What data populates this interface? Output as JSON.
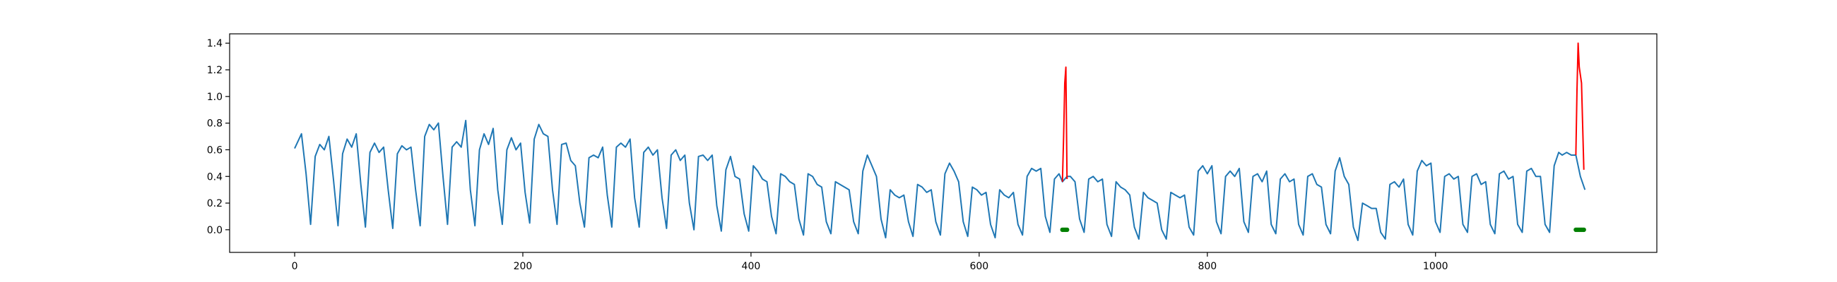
{
  "chart_data": {
    "type": "line",
    "title": "",
    "xlabel": "",
    "ylabel": "",
    "xlim": [
      -57,
      1194
    ],
    "ylim": [
      -0.17,
      1.47
    ],
    "x_ticks": [
      0,
      200,
      400,
      600,
      800,
      1000
    ],
    "y_ticks": [
      0.0,
      0.2,
      0.4,
      0.6,
      0.8,
      1.0,
      1.2,
      1.4
    ],
    "x_tick_labels": [
      "0",
      "200",
      "400",
      "600",
      "800",
      "1000"
    ],
    "y_tick_labels": [
      "0.0",
      "0.2",
      "0.4",
      "0.6",
      "0.8",
      "1.0",
      "1.2",
      "1.4"
    ],
    "grid": false,
    "legend": "none",
    "series": [
      {
        "kind": "line",
        "color": "#1f77b4",
        "points": [
          [
            0,
            0.61
          ],
          [
            6,
            0.72
          ],
          [
            10,
            0.42
          ],
          [
            14,
            0.04
          ],
          [
            18,
            0.55
          ],
          [
            22,
            0.64
          ],
          [
            26,
            0.6
          ],
          [
            30,
            0.7
          ],
          [
            34,
            0.38
          ],
          [
            38,
            0.03
          ],
          [
            42,
            0.57
          ],
          [
            46,
            0.68
          ],
          [
            50,
            0.62
          ],
          [
            54,
            0.72
          ],
          [
            58,
            0.34
          ],
          [
            62,
            0.02
          ],
          [
            66,
            0.58
          ],
          [
            70,
            0.65
          ],
          [
            74,
            0.58
          ],
          [
            78,
            0.62
          ],
          [
            82,
            0.3
          ],
          [
            86,
            0.01
          ],
          [
            90,
            0.57
          ],
          [
            94,
            0.63
          ],
          [
            98,
            0.6
          ],
          [
            102,
            0.62
          ],
          [
            106,
            0.3
          ],
          [
            110,
            0.03
          ],
          [
            114,
            0.7
          ],
          [
            118,
            0.79
          ],
          [
            122,
            0.75
          ],
          [
            126,
            0.8
          ],
          [
            130,
            0.4
          ],
          [
            134,
            0.04
          ],
          [
            138,
            0.62
          ],
          [
            142,
            0.66
          ],
          [
            146,
            0.62
          ],
          [
            150,
            0.82
          ],
          [
            154,
            0.3
          ],
          [
            158,
            0.03
          ],
          [
            162,
            0.6
          ],
          [
            166,
            0.72
          ],
          [
            170,
            0.64
          ],
          [
            174,
            0.76
          ],
          [
            178,
            0.3
          ],
          [
            182,
            0.04
          ],
          [
            186,
            0.6
          ],
          [
            190,
            0.69
          ],
          [
            194,
            0.6
          ],
          [
            198,
            0.65
          ],
          [
            202,
            0.28
          ],
          [
            206,
            0.05
          ],
          [
            210,
            0.68
          ],
          [
            214,
            0.79
          ],
          [
            218,
            0.72
          ],
          [
            222,
            0.7
          ],
          [
            226,
            0.3
          ],
          [
            230,
            0.04
          ],
          [
            234,
            0.64
          ],
          [
            238,
            0.65
          ],
          [
            242,
            0.52
          ],
          [
            246,
            0.48
          ],
          [
            250,
            0.2
          ],
          [
            254,
            0.02
          ],
          [
            258,
            0.54
          ],
          [
            262,
            0.56
          ],
          [
            266,
            0.54
          ],
          [
            270,
            0.62
          ],
          [
            274,
            0.26
          ],
          [
            278,
            0.02
          ],
          [
            282,
            0.62
          ],
          [
            286,
            0.65
          ],
          [
            290,
            0.62
          ],
          [
            294,
            0.68
          ],
          [
            298,
            0.24
          ],
          [
            302,
            0.02
          ],
          [
            306,
            0.58
          ],
          [
            310,
            0.62
          ],
          [
            314,
            0.56
          ],
          [
            318,
            0.6
          ],
          [
            322,
            0.24
          ],
          [
            326,
            0.01
          ],
          [
            330,
            0.56
          ],
          [
            334,
            0.6
          ],
          [
            338,
            0.52
          ],
          [
            342,
            0.56
          ],
          [
            346,
            0.2
          ],
          [
            350,
            0.0
          ],
          [
            354,
            0.55
          ],
          [
            358,
            0.56
          ],
          [
            362,
            0.52
          ],
          [
            366,
            0.56
          ],
          [
            370,
            0.18
          ],
          [
            374,
            -0.01
          ],
          [
            378,
            0.45
          ],
          [
            382,
            0.55
          ],
          [
            386,
            0.4
          ],
          [
            390,
            0.38
          ],
          [
            394,
            0.12
          ],
          [
            398,
            -0.01
          ],
          [
            402,
            0.48
          ],
          [
            406,
            0.44
          ],
          [
            410,
            0.38
          ],
          [
            414,
            0.36
          ],
          [
            418,
            0.1
          ],
          [
            422,
            -0.03
          ],
          [
            426,
            0.42
          ],
          [
            430,
            0.4
          ],
          [
            434,
            0.36
          ],
          [
            438,
            0.34
          ],
          [
            442,
            0.08
          ],
          [
            446,
            -0.04
          ],
          [
            450,
            0.42
          ],
          [
            454,
            0.4
          ],
          [
            458,
            0.34
          ],
          [
            462,
            0.32
          ],
          [
            466,
            0.06
          ],
          [
            470,
            -0.03
          ],
          [
            474,
            0.36
          ],
          [
            478,
            0.34
          ],
          [
            482,
            0.32
          ],
          [
            486,
            0.3
          ],
          [
            490,
            0.06
          ],
          [
            494,
            -0.03
          ],
          [
            498,
            0.44
          ],
          [
            502,
            0.56
          ],
          [
            506,
            0.48
          ],
          [
            510,
            0.4
          ],
          [
            514,
            0.08
          ],
          [
            518,
            -0.06
          ],
          [
            522,
            0.3
          ],
          [
            526,
            0.26
          ],
          [
            530,
            0.24
          ],
          [
            534,
            0.26
          ],
          [
            538,
            0.06
          ],
          [
            542,
            -0.05
          ],
          [
            546,
            0.34
          ],
          [
            550,
            0.32
          ],
          [
            554,
            0.28
          ],
          [
            558,
            0.3
          ],
          [
            562,
            0.06
          ],
          [
            566,
            -0.04
          ],
          [
            570,
            0.42
          ],
          [
            574,
            0.5
          ],
          [
            578,
            0.44
          ],
          [
            582,
            0.36
          ],
          [
            586,
            0.06
          ],
          [
            590,
            -0.05
          ],
          [
            594,
            0.32
          ],
          [
            598,
            0.3
          ],
          [
            602,
            0.26
          ],
          [
            606,
            0.28
          ],
          [
            610,
            0.04
          ],
          [
            614,
            -0.06
          ],
          [
            618,
            0.3
          ],
          [
            622,
            0.26
          ],
          [
            626,
            0.24
          ],
          [
            630,
            0.28
          ],
          [
            634,
            0.04
          ],
          [
            638,
            -0.04
          ],
          [
            642,
            0.4
          ],
          [
            646,
            0.46
          ],
          [
            650,
            0.44
          ],
          [
            654,
            0.46
          ],
          [
            658,
            0.1
          ],
          [
            662,
            -0.02
          ],
          [
            666,
            0.38
          ],
          [
            670,
            0.42
          ],
          [
            673,
            0.36
          ],
          [
            677,
            0.4
          ],
          [
            680,
            0.4
          ],
          [
            684,
            0.36
          ],
          [
            688,
            0.08
          ],
          [
            692,
            -0.02
          ],
          [
            696,
            0.38
          ],
          [
            700,
            0.4
          ],
          [
            704,
            0.36
          ],
          [
            708,
            0.38
          ],
          [
            712,
            0.04
          ],
          [
            716,
            -0.05
          ],
          [
            720,
            0.36
          ],
          [
            724,
            0.32
          ],
          [
            728,
            0.3
          ],
          [
            732,
            0.26
          ],
          [
            736,
            0.02
          ],
          [
            740,
            -0.07
          ],
          [
            744,
            0.28
          ],
          [
            748,
            0.24
          ],
          [
            752,
            0.22
          ],
          [
            756,
            0.2
          ],
          [
            760,
            0.0
          ],
          [
            764,
            -0.07
          ],
          [
            768,
            0.28
          ],
          [
            772,
            0.26
          ],
          [
            776,
            0.24
          ],
          [
            780,
            0.26
          ],
          [
            784,
            0.02
          ],
          [
            788,
            -0.04
          ],
          [
            792,
            0.44
          ],
          [
            796,
            0.48
          ],
          [
            800,
            0.42
          ],
          [
            804,
            0.48
          ],
          [
            808,
            0.06
          ],
          [
            812,
            -0.03
          ],
          [
            816,
            0.4
          ],
          [
            820,
            0.44
          ],
          [
            824,
            0.4
          ],
          [
            828,
            0.46
          ],
          [
            832,
            0.06
          ],
          [
            836,
            -0.02
          ],
          [
            840,
            0.4
          ],
          [
            844,
            0.42
          ],
          [
            848,
            0.36
          ],
          [
            852,
            0.44
          ],
          [
            856,
            0.04
          ],
          [
            860,
            -0.03
          ],
          [
            864,
            0.38
          ],
          [
            868,
            0.42
          ],
          [
            872,
            0.36
          ],
          [
            876,
            0.38
          ],
          [
            880,
            0.04
          ],
          [
            884,
            -0.04
          ],
          [
            888,
            0.4
          ],
          [
            892,
            0.42
          ],
          [
            896,
            0.34
          ],
          [
            900,
            0.32
          ],
          [
            904,
            0.04
          ],
          [
            908,
            -0.03
          ],
          [
            912,
            0.44
          ],
          [
            916,
            0.54
          ],
          [
            920,
            0.4
          ],
          [
            924,
            0.34
          ],
          [
            928,
            0.02
          ],
          [
            932,
            -0.08
          ],
          [
            936,
            0.2
          ],
          [
            940,
            0.18
          ],
          [
            944,
            0.16
          ],
          [
            948,
            0.16
          ],
          [
            952,
            -0.02
          ],
          [
            956,
            -0.07
          ],
          [
            960,
            0.34
          ],
          [
            964,
            0.36
          ],
          [
            968,
            0.32
          ],
          [
            972,
            0.38
          ],
          [
            976,
            0.04
          ],
          [
            980,
            -0.04
          ],
          [
            984,
            0.44
          ],
          [
            988,
            0.52
          ],
          [
            992,
            0.48
          ],
          [
            996,
            0.5
          ],
          [
            1000,
            0.06
          ],
          [
            1004,
            -0.02
          ],
          [
            1008,
            0.4
          ],
          [
            1012,
            0.42
          ],
          [
            1016,
            0.38
          ],
          [
            1020,
            0.4
          ],
          [
            1024,
            0.04
          ],
          [
            1028,
            -0.02
          ],
          [
            1032,
            0.4
          ],
          [
            1036,
            0.42
          ],
          [
            1040,
            0.34
          ],
          [
            1044,
            0.36
          ],
          [
            1048,
            0.04
          ],
          [
            1052,
            -0.03
          ],
          [
            1056,
            0.42
          ],
          [
            1060,
            0.44
          ],
          [
            1064,
            0.38
          ],
          [
            1068,
            0.4
          ],
          [
            1072,
            0.04
          ],
          [
            1076,
            -0.02
          ],
          [
            1080,
            0.44
          ],
          [
            1084,
            0.46
          ],
          [
            1088,
            0.4
          ],
          [
            1092,
            0.4
          ],
          [
            1096,
            0.04
          ],
          [
            1100,
            -0.02
          ],
          [
            1104,
            0.48
          ],
          [
            1108,
            0.58
          ],
          [
            1111,
            0.56
          ],
          [
            1115,
            0.58
          ],
          [
            1119,
            0.56
          ],
          [
            1123,
            0.56
          ],
          [
            1127,
            0.4
          ],
          [
            1131,
            0.3
          ]
        ]
      },
      {
        "kind": "line",
        "color": "#ff0000",
        "points": [
          [
            673,
            0.36
          ],
          [
            674,
            0.7
          ],
          [
            675,
            1.1
          ],
          [
            676,
            1.22
          ],
          [
            677,
            0.38
          ]
        ]
      },
      {
        "kind": "line",
        "color": "#ff0000",
        "points": [
          [
            1123,
            0.56
          ],
          [
            1124,
            1.05
          ],
          [
            1125,
            1.4
          ],
          [
            1126,
            1.22
          ],
          [
            1128,
            1.1
          ],
          [
            1130,
            0.45
          ]
        ]
      },
      {
        "kind": "scatter",
        "color": "#008000",
        "points": [
          [
            673,
            0.0
          ],
          [
            674,
            0.0
          ],
          [
            675,
            0.0
          ],
          [
            676,
            0.0
          ],
          [
            677,
            0.0
          ],
          [
            1123,
            0.0
          ],
          [
            1124,
            0.0
          ],
          [
            1125,
            0.0
          ],
          [
            1126,
            0.0
          ],
          [
            1127,
            0.0
          ],
          [
            1128,
            0.0
          ],
          [
            1129,
            0.0
          ],
          [
            1130,
            0.0
          ]
        ]
      }
    ]
  }
}
